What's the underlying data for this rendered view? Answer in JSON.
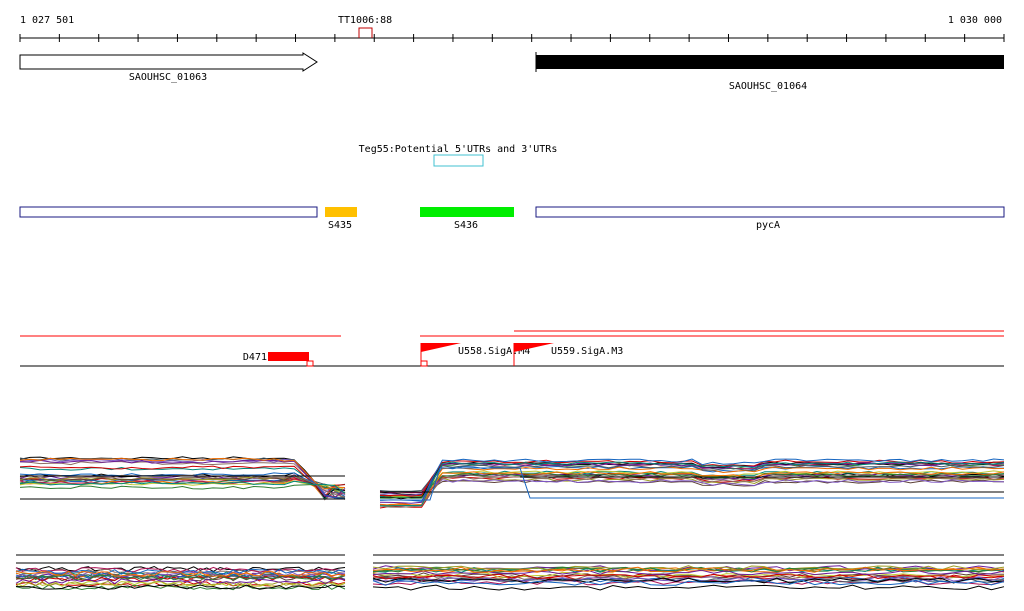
{
  "ruler": {
    "start_label": "1 027 501",
    "end_label": "1 030 000",
    "marker_label": "TT1006:88",
    "marker_color": "#c00000"
  },
  "genes": [
    {
      "name": "SAOUHSC_01063",
      "style": "outline-arrow",
      "color": "#000000"
    },
    {
      "name": "SAOUHSC_01064",
      "style": "filled-bar",
      "color": "#000000"
    }
  ],
  "teg_feature": {
    "label": "Teg55:Potential 5'UTRs and 3'UTRs",
    "color": "#40c0d0"
  },
  "segments": [
    {
      "name": "",
      "style": "outline",
      "color": "#1a1a80"
    },
    {
      "name": "S435",
      "style": "filled",
      "color": "#ffc000"
    },
    {
      "name": "S436",
      "style": "filled",
      "color": "#00ee00"
    },
    {
      "name": "pycA",
      "style": "outline",
      "color": "#1a1a80"
    }
  ],
  "transcripts": [
    {
      "name": "D471",
      "color": "#ff0000"
    },
    {
      "name": "U558.SigA.M4",
      "color": "#ff0000"
    },
    {
      "name": "U559.SigA.M3",
      "color": "#ff0000"
    }
  ],
  "expression_palette": [
    "#000000",
    "#cc0000",
    "#2e7d32",
    "#6a1b9a",
    "#1565c0",
    "#ef6c00",
    "#8d6e63",
    "#00897b",
    "#9e9d24",
    "#ad1457",
    "#5d4037",
    "#455a64",
    "#c0ca33",
    "#7e57c2"
  ]
}
